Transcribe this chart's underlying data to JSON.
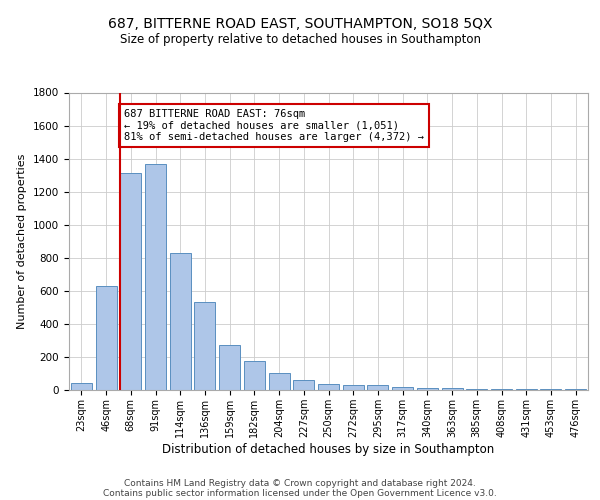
{
  "title1": "687, BITTERNE ROAD EAST, SOUTHAMPTON, SO18 5QX",
  "title2": "Size of property relative to detached houses in Southampton",
  "xlabel": "Distribution of detached houses by size in Southampton",
  "ylabel": "Number of detached properties",
  "bins": [
    "23sqm",
    "46sqm",
    "68sqm",
    "91sqm",
    "114sqm",
    "136sqm",
    "159sqm",
    "182sqm",
    "204sqm",
    "227sqm",
    "250sqm",
    "272sqm",
    "295sqm",
    "317sqm",
    "340sqm",
    "363sqm",
    "385sqm",
    "408sqm",
    "431sqm",
    "453sqm",
    "476sqm"
  ],
  "values": [
    40,
    630,
    1310,
    1370,
    830,
    530,
    270,
    175,
    100,
    60,
    35,
    30,
    30,
    20,
    15,
    10,
    5,
    5,
    5,
    5,
    5
  ],
  "bar_color": "#aec6e8",
  "bar_edge_color": "#5a8fc0",
  "vline_color": "#cc0000",
  "vline_pos": 1.575,
  "annotation_text": "687 BITTERNE ROAD EAST: 76sqm\n← 19% of detached houses are smaller (1,051)\n81% of semi-detached houses are larger (4,372) →",
  "annotation_box_color": "#ffffff",
  "annotation_box_edge": "#cc0000",
  "ylim": [
    0,
    1800
  ],
  "yticks": [
    0,
    200,
    400,
    600,
    800,
    1000,
    1200,
    1400,
    1600,
    1800
  ],
  "footer1": "Contains HM Land Registry data © Crown copyright and database right 2024.",
  "footer2": "Contains public sector information licensed under the Open Government Licence v3.0.",
  "bg_color": "#ffffff",
  "grid_color": "#cccccc"
}
